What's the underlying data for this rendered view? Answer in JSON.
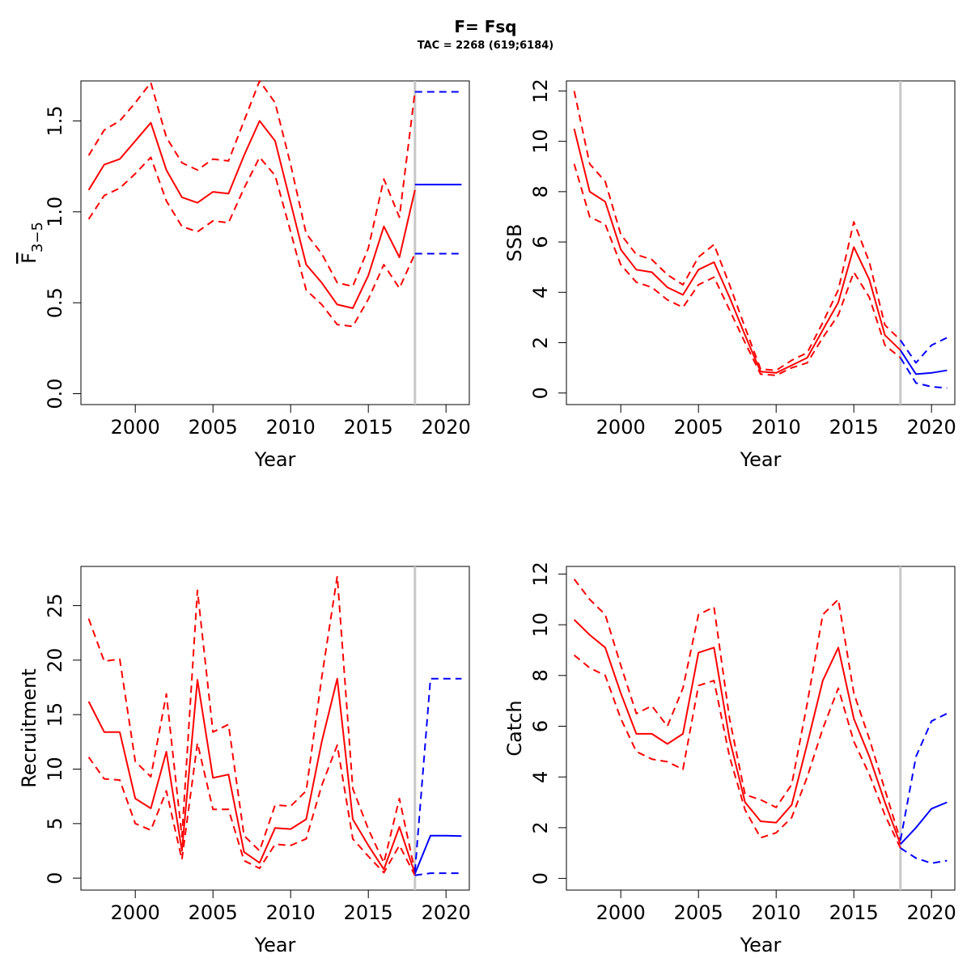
{
  "title": "F= Fsq",
  "subtitle": "TAC = 2268 (619;6184)",
  "colors": {
    "historical": "#ff0000",
    "projection": "#0000ff",
    "separator": "#c8c8c8",
    "axis": "#000000"
  },
  "chart_data": [
    {
      "type": "line",
      "id": "fbar",
      "xlabel": "Year",
      "ylabel": "F3-5",
      "ylabel_main": "F",
      "ylabel_sub": "3−5",
      "xlim": [
        1996.5,
        2021.5
      ],
      "ylim": [
        -0.06,
        1.72
      ],
      "xticks": [
        2000,
        2005,
        2010,
        2015,
        2020
      ],
      "yticks": [
        0.0,
        0.5,
        1.0,
        1.5
      ],
      "ytick_labels": [
        "0.0",
        "0.5",
        "1.0",
        "1.5"
      ],
      "separator_year": 2018,
      "historical": {
        "x": [
          1997,
          1998,
          1999,
          2000,
          2001,
          2002,
          2003,
          2004,
          2005,
          2006,
          2007,
          2008,
          2009,
          2010,
          2011,
          2012,
          2013,
          2014,
          2015,
          2016,
          2017,
          2018
        ],
        "median": [
          1.12,
          1.26,
          1.29,
          1.39,
          1.49,
          1.23,
          1.08,
          1.05,
          1.11,
          1.1,
          1.31,
          1.5,
          1.39,
          1.05,
          0.71,
          0.61,
          0.49,
          0.47,
          0.65,
          0.92,
          0.75,
          1.12
        ],
        "upper": [
          1.31,
          1.45,
          1.5,
          1.6,
          1.71,
          1.41,
          1.27,
          1.23,
          1.29,
          1.28,
          1.5,
          1.72,
          1.6,
          1.26,
          0.88,
          0.77,
          0.61,
          0.59,
          0.8,
          1.18,
          0.97,
          1.66
        ],
        "lower": [
          0.96,
          1.09,
          1.13,
          1.21,
          1.3,
          1.06,
          0.92,
          0.89,
          0.95,
          0.94,
          1.13,
          1.3,
          1.2,
          0.89,
          0.57,
          0.49,
          0.38,
          0.37,
          0.52,
          0.71,
          0.58,
          0.77
        ]
      },
      "projection": {
        "x": [
          2018,
          2019,
          2020,
          2021
        ],
        "median": [
          1.15,
          1.15,
          1.15,
          1.15
        ],
        "upper": [
          1.66,
          1.66,
          1.66,
          1.66
        ],
        "lower": [
          0.77,
          0.77,
          0.77,
          0.77
        ]
      }
    },
    {
      "type": "line",
      "id": "ssb",
      "xlabel": "Year",
      "ylabel": "SSB",
      "xlim": [
        1996.5,
        2021.5
      ],
      "ylim": [
        -0.46,
        12.4
      ],
      "xticks": [
        2000,
        2005,
        2010,
        2015,
        2020
      ],
      "yticks": [
        0,
        2,
        4,
        6,
        8,
        10,
        12
      ],
      "ytick_labels": [
        "0",
        "2",
        "4",
        "6",
        "8",
        "10",
        "12"
      ],
      "separator_year": 2018,
      "historical": {
        "x": [
          1997,
          1998,
          1999,
          2000,
          2001,
          2002,
          2003,
          2004,
          2005,
          2006,
          2007,
          2008,
          2009,
          2010,
          2011,
          2012,
          2013,
          2014,
          2015,
          2016,
          2017,
          2018
        ],
        "median": [
          10.5,
          8.0,
          7.6,
          5.7,
          4.9,
          4.8,
          4.2,
          3.9,
          4.9,
          5.2,
          3.8,
          2.3,
          0.85,
          0.8,
          1.1,
          1.4,
          2.5,
          3.6,
          5.8,
          4.5,
          2.3,
          1.7
        ],
        "upper": [
          12.0,
          9.1,
          8.4,
          6.3,
          5.5,
          5.3,
          4.7,
          4.3,
          5.4,
          5.9,
          4.3,
          2.6,
          0.95,
          0.9,
          1.3,
          1.6,
          2.8,
          4.1,
          6.8,
          5.2,
          2.7,
          2.1
        ],
        "lower": [
          9.1,
          7.0,
          6.7,
          5.1,
          4.4,
          4.2,
          3.7,
          3.4,
          4.3,
          4.6,
          3.3,
          2.0,
          0.75,
          0.7,
          1.0,
          1.2,
          2.2,
          3.1,
          4.8,
          3.8,
          1.9,
          1.4
        ]
      },
      "projection": {
        "x": [
          2018,
          2019,
          2020,
          2021
        ],
        "median": [
          1.7,
          0.75,
          0.8,
          0.9
        ],
        "upper": [
          2.1,
          1.2,
          1.9,
          2.2
        ],
        "lower": [
          1.4,
          0.4,
          0.25,
          0.2
        ]
      }
    },
    {
      "type": "line",
      "id": "recruitment",
      "xlabel": "Year",
      "ylabel": "Recruitment",
      "xlim": [
        1996.5,
        2021.5
      ],
      "ylim": [
        -1.1,
        28.6
      ],
      "xticks": [
        2000,
        2005,
        2010,
        2015,
        2020
      ],
      "yticks": [
        0,
        5,
        10,
        15,
        20,
        25
      ],
      "ytick_labels": [
        "0",
        "5",
        "10",
        "15",
        "20",
        "25"
      ],
      "separator_year": 2018,
      "historical": {
        "x": [
          1997,
          1998,
          1999,
          2000,
          2001,
          2002,
          2003,
          2004,
          2005,
          2006,
          2007,
          2008,
          2009,
          2010,
          2011,
          2012,
          2013,
          2014,
          2015,
          2016,
          2017,
          2018
        ],
        "median": [
          16.2,
          13.4,
          13.4,
          7.3,
          6.4,
          11.6,
          2.5,
          18.2,
          9.2,
          9.5,
          2.4,
          1.4,
          4.6,
          4.5,
          5.4,
          12.5,
          18.3,
          5.4,
          3.0,
          0.8,
          4.7,
          0.4
        ],
        "upper": [
          23.8,
          19.9,
          20.1,
          10.7,
          9.3,
          16.9,
          3.8,
          26.4,
          13.4,
          14.1,
          3.9,
          2.5,
          6.7,
          6.6,
          8.0,
          18.4,
          27.7,
          8.2,
          4.5,
          1.4,
          7.3,
          0.6
        ],
        "lower": [
          11.1,
          9.1,
          9.0,
          5.0,
          4.4,
          8.0,
          1.7,
          12.4,
          6.3,
          6.3,
          1.6,
          0.9,
          3.1,
          3.0,
          3.6,
          8.5,
          12.2,
          3.6,
          2.0,
          0.5,
          3.0,
          0.25
        ]
      },
      "projection": {
        "x": [
          2018,
          2019,
          2020,
          2021
        ],
        "median": [
          0.4,
          3.9,
          3.9,
          3.85
        ],
        "upper": [
          0.6,
          18.3,
          18.3,
          18.3
        ],
        "lower": [
          0.25,
          0.45,
          0.45,
          0.45
        ]
      }
    },
    {
      "type": "line",
      "id": "catch",
      "xlabel": "Year",
      "ylabel": "Catch",
      "xlim": [
        1996.5,
        2021.5
      ],
      "ylim": [
        -0.46,
        12.3
      ],
      "xticks": [
        2000,
        2005,
        2010,
        2015,
        2020
      ],
      "yticks": [
        0,
        2,
        4,
        6,
        8,
        10,
        12
      ],
      "ytick_labels": [
        "0",
        "2",
        "4",
        "6",
        "8",
        "10",
        "12"
      ],
      "separator_year": 2018,
      "historical": {
        "x": [
          1997,
          1998,
          1999,
          2000,
          2001,
          2002,
          2003,
          2004,
          2005,
          2006,
          2007,
          2008,
          2009,
          2010,
          2011,
          2012,
          2013,
          2014,
          2015,
          2016,
          2017,
          2018
        ],
        "median": [
          10.2,
          9.6,
          9.1,
          7.3,
          5.7,
          5.7,
          5.3,
          5.7,
          8.9,
          9.1,
          5.5,
          3.0,
          2.25,
          2.2,
          2.9,
          5.3,
          7.8,
          9.1,
          6.3,
          4.8,
          3.0,
          1.35
        ],
        "upper": [
          11.8,
          11.0,
          10.4,
          8.4,
          6.5,
          6.8,
          6.0,
          7.5,
          10.4,
          10.7,
          6.3,
          3.3,
          3.1,
          2.8,
          3.7,
          6.9,
          10.4,
          11.0,
          7.3,
          5.5,
          3.5,
          1.5
        ],
        "lower": [
          8.8,
          8.3,
          8.0,
          6.3,
          5.0,
          4.7,
          4.6,
          4.3,
          7.6,
          7.8,
          4.8,
          2.7,
          1.6,
          1.8,
          2.4,
          4.0,
          5.9,
          7.5,
          5.4,
          4.1,
          2.5,
          1.2
        ]
      },
      "projection": {
        "x": [
          2018,
          2019,
          2020,
          2021
        ],
        "median": [
          1.35,
          2.0,
          2.75,
          3.0
        ],
        "upper": [
          1.5,
          4.8,
          6.2,
          6.5
        ],
        "lower": [
          1.2,
          0.8,
          0.6,
          0.7
        ]
      }
    }
  ]
}
